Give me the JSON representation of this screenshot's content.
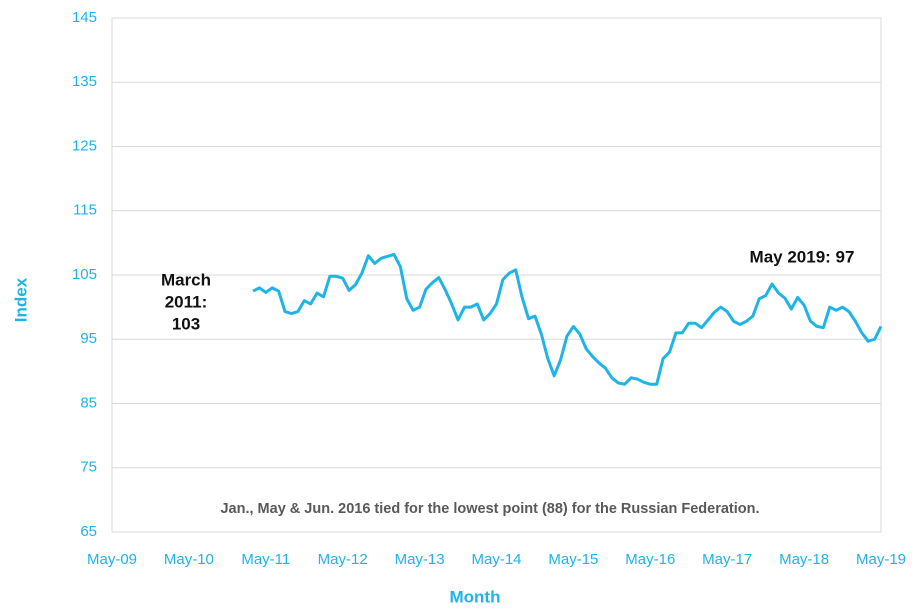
{
  "chart_data": {
    "type": "line",
    "x_label": "Month",
    "y_label": "Index",
    "annotations": [
      {
        "lines": [
          "March",
          "2011:",
          "103"
        ]
      },
      {
        "lines": [
          "May 2019: 97"
        ]
      },
      {
        "lines": [
          "Jan., May & Jun. 2016 tied for the lowest point (88) for the Russian Federation."
        ]
      }
    ],
    "x": [
      "Mar-11",
      "Apr-11",
      "May-11",
      "Jun-11",
      "Jul-11",
      "Aug-11",
      "Sep-11",
      "Oct-11",
      "Nov-11",
      "Dec-11",
      "Jan-12",
      "Feb-12",
      "Mar-12",
      "Apr-12",
      "May-12",
      "Jun-12",
      "Jul-12",
      "Aug-12",
      "Sep-12",
      "Oct-12",
      "Nov-12",
      "Dec-12",
      "Jan-13",
      "Feb-13",
      "Mar-13",
      "Apr-13",
      "May-13",
      "Jun-13",
      "Jul-13",
      "Aug-13",
      "Sep-13",
      "Oct-13",
      "Nov-13",
      "Dec-13",
      "Jan-14",
      "Feb-14",
      "Mar-14",
      "Apr-14",
      "May-14",
      "Jun-14",
      "Jul-14",
      "Aug-14",
      "Sep-14",
      "Oct-14",
      "Nov-14",
      "Dec-14",
      "Jan-15",
      "Feb-15",
      "Mar-15",
      "Apr-15",
      "May-15",
      "Jun-15",
      "Jul-15",
      "Aug-15",
      "Sep-15",
      "Oct-15",
      "Nov-15",
      "Dec-15",
      "Jan-16",
      "Feb-16",
      "Mar-16",
      "Apr-16",
      "May-16",
      "Jun-16",
      "Jul-16",
      "Aug-16",
      "Sep-16",
      "Oct-16",
      "Nov-16",
      "Dec-16",
      "Jan-17",
      "Feb-17",
      "Mar-17",
      "Apr-17",
      "May-17",
      "Jun-17",
      "Jul-17",
      "Aug-17",
      "Sep-17",
      "Oct-17",
      "Nov-17",
      "Dec-17",
      "Jan-18",
      "Feb-18",
      "Mar-18",
      "Apr-18",
      "May-18",
      "Jun-18",
      "Jul-18",
      "Aug-18",
      "Sep-18",
      "Oct-18",
      "Nov-18",
      "Dec-18",
      "Jan-19",
      "Feb-19",
      "Mar-19",
      "Apr-19",
      "May-19"
    ],
    "series": [
      {
        "name": "Russian Federation",
        "color": "#1fb4e6",
        "values": [
          102.5,
          103,
          102.3,
          103,
          102.5,
          99.3,
          99,
          99.3,
          101,
          100.5,
          102.2,
          101.6,
          104.8,
          104.8,
          104.5,
          102.6,
          103.5,
          105.3,
          108,
          106.8,
          107.6,
          107.9,
          108.2,
          106.3,
          101.3,
          99.5,
          100,
          102.8,
          103.8,
          104.6,
          102.7,
          100.5,
          98,
          100,
          100,
          100.5,
          98,
          99,
          100.5,
          104.3,
          105.3,
          105.8,
          101.5,
          98.2,
          98.6,
          95.8,
          92,
          89.3,
          91.8,
          95.5,
          97,
          95.8,
          93.5,
          92.3,
          91.3,
          90.5,
          89,
          88.2,
          88,
          89,
          88.8,
          88.3,
          88,
          88,
          92,
          93,
          96,
          96,
          97.5,
          97.5,
          96.8,
          98,
          99.2,
          100,
          99.3,
          97.8,
          97.3,
          97.8,
          98.6,
          101.3,
          101.8,
          103.6,
          102.2,
          101.4,
          99.7,
          101.5,
          100.3,
          97.8,
          97,
          96.8,
          100,
          99.5,
          100,
          99.3,
          97.8,
          96,
          94.7,
          95,
          97
        ]
      }
    ],
    "xlim": [
      "May-09",
      "May-19"
    ],
    "xticks": [
      "May-09",
      "May-10",
      "May-11",
      "May-12",
      "May-13",
      "May-14",
      "May-15",
      "May-16",
      "May-17",
      "May-18",
      "May-19"
    ],
    "ylim": [
      65,
      145
    ],
    "yticks": [
      65,
      75,
      85,
      95,
      105,
      115,
      125,
      135,
      145
    ],
    "grid": true
  }
}
